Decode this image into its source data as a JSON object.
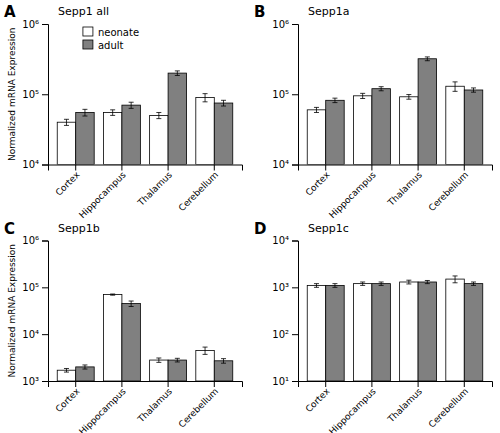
{
  "chart_data": [
    {
      "type": "bar",
      "title": "Sepp1 all",
      "annotations": [
        "A"
      ],
      "ylabel": "Normalized mRNA Expression",
      "categories": [
        "Cortex",
        "Hippocampus",
        "Thalamus",
        "Cerebellum"
      ],
      "series": [
        {
          "name": "neonate",
          "color": "#ffffff",
          "values": [
            40000,
            55000,
            50000,
            90000
          ],
          "errors": [
            4000,
            5000,
            5000,
            12000
          ]
        },
        {
          "name": "adult",
          "color": "#808080",
          "values": [
            55000,
            70000,
            200000,
            75000
          ],
          "errors": [
            6000,
            7000,
            15000,
            7000
          ]
        }
      ],
      "log": "y",
      "ylim": [
        10000,
        1000000
      ],
      "yticks": [
        {
          "value": 10000,
          "label": "10⁴"
        },
        {
          "value": 100000,
          "label": "10⁵"
        },
        {
          "value": 1000000,
          "label": "10⁶"
        }
      ],
      "grid": false,
      "legend": "upper left"
    },
    {
      "type": "bar",
      "title": "Sepp1a",
      "annotations": [
        "B"
      ],
      "categories": [
        "Cortex",
        "Hippocampus",
        "Thalamus",
        "Cerebellum"
      ],
      "series": [
        {
          "name": "neonate",
          "color": "#ffffff",
          "values": [
            60000,
            95000,
            92000,
            130000
          ],
          "errors": [
            5000,
            8000,
            7000,
            20000
          ]
        },
        {
          "name": "adult",
          "color": "#808080",
          "values": [
            82000,
            120000,
            320000,
            115000
          ],
          "errors": [
            6000,
            8000,
            20000,
            8000
          ]
        }
      ],
      "log": "y",
      "ylim": [
        10000,
        1000000
      ],
      "yticks": [
        {
          "value": 10000,
          "label": "10⁴"
        },
        {
          "value": 100000,
          "label": "10⁵"
        },
        {
          "value": 1000000,
          "label": "10⁶"
        }
      ],
      "grid": false
    },
    {
      "type": "bar",
      "title": "Sepp1b",
      "annotations": [
        "C"
      ],
      "ylabel": "Normalized mRNA Expression",
      "categories": [
        "Cortex",
        "Hippocampus",
        "Thalamus",
        "Cerebellum"
      ],
      "series": [
        {
          "name": "neonate",
          "color": "#ffffff",
          "values": [
            1700,
            70000,
            2800,
            4500
          ],
          "errors": [
            150,
            2000,
            300,
            800
          ]
        },
        {
          "name": "adult",
          "color": "#808080",
          "values": [
            2000,
            45000,
            2800,
            2700
          ],
          "errors": [
            200,
            6000,
            250,
            300
          ]
        }
      ],
      "log": "y",
      "ylim": [
        1000,
        1000000
      ],
      "yticks": [
        {
          "value": 1000,
          "label": "10³"
        },
        {
          "value": 10000,
          "label": "10⁴"
        },
        {
          "value": 100000,
          "label": "10⁵"
        },
        {
          "value": 1000000,
          "label": "10⁶"
        }
      ],
      "grid": false
    },
    {
      "type": "bar",
      "title": "Sepp1c",
      "annotations": [
        "D"
      ],
      "categories": [
        "Cortex",
        "Hippocampus",
        "Thalamus",
        "Cerebellum"
      ],
      "series": [
        {
          "name": "neonate",
          "color": "#ffffff",
          "values": [
            1100,
            1200,
            1300,
            1500
          ],
          "errors": [
            100,
            100,
            120,
            250
          ]
        },
        {
          "name": "adult",
          "color": "#808080",
          "values": [
            1100,
            1200,
            1300,
            1200
          ],
          "errors": [
            100,
            100,
            100,
            100
          ]
        }
      ],
      "log": "y",
      "ylim": [
        10,
        10000
      ],
      "yticks": [
        {
          "value": 10,
          "label": "10¹"
        },
        {
          "value": 100,
          "label": "10²"
        },
        {
          "value": 1000,
          "label": "10³"
        },
        {
          "value": 10000,
          "label": "10⁴"
        }
      ],
      "grid": false
    }
  ]
}
